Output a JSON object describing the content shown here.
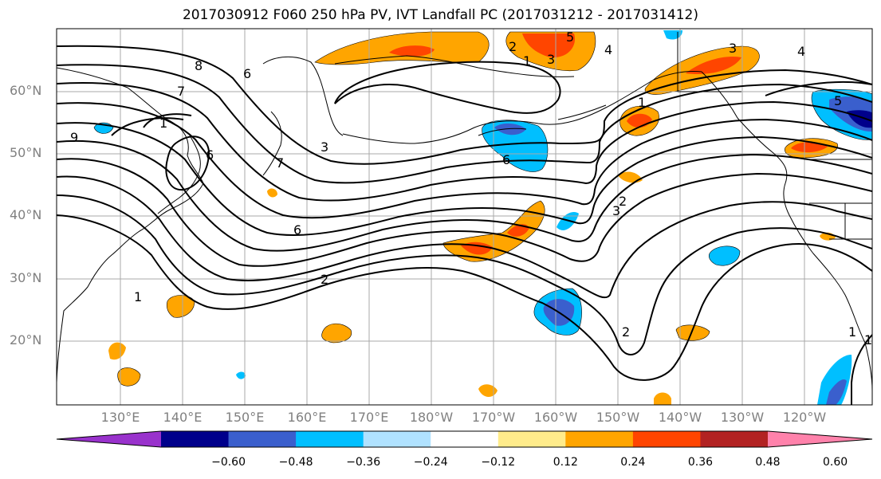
{
  "title": "2017030912 F060 250 hPa PV, IVT Landfall PC (2017031212 - 2017031412)",
  "latitude_labels": [
    "60°N",
    "50°N",
    "40°N",
    "30°N",
    "20°N"
  ],
  "longitude_labels": [
    "130°E",
    "140°E",
    "150°E",
    "160°E",
    "170°E",
    "180°W",
    "170°W",
    "160°W",
    "150°W",
    "140°W",
    "130°W",
    "120°W"
  ],
  "contour_labels": [
    "8",
    "7",
    "6",
    "9",
    "3",
    "7",
    "6",
    "1",
    "2",
    "5",
    "4",
    "3",
    "6",
    "2",
    "1",
    "5",
    "4",
    "3",
    "1",
    "2",
    "1",
    "1",
    "1",
    "6",
    "3",
    "2"
  ],
  "colorbar": {
    "tick_labels": [
      "−0.60",
      "−0.48",
      "−0.36",
      "−0.24",
      "−0.12",
      "0.12",
      "0.24",
      "0.36",
      "0.48",
      "0.60"
    ],
    "colors": [
      "#9932cc",
      "#00008b",
      "#3a5fcd",
      "#00bfff",
      "#b0e2ff",
      "#ffffff",
      "#ffec8b",
      "#ffa500",
      "#ff4500",
      "#b22222",
      "#ff82ab"
    ]
  },
  "fill_colors": {
    "neg_light": "#b0e2ff",
    "neg_mid": "#00bfff",
    "neg_strong": "#3a5fcd",
    "neg_max": "#00008b",
    "pos_light": "#ffec8b",
    "pos_mid": "#ffa500",
    "pos_strong": "#ff4500"
  }
}
